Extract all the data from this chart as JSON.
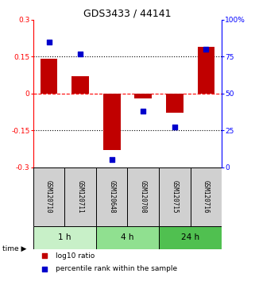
{
  "title": "GDS3433 / 44141",
  "samples": [
    "GSM120710",
    "GSM120711",
    "GSM120648",
    "GSM120708",
    "GSM120715",
    "GSM120716"
  ],
  "log10_ratio": [
    0.14,
    0.07,
    -0.23,
    -0.02,
    -0.08,
    0.19
  ],
  "percentile_rank": [
    85,
    77,
    5,
    38,
    27,
    80
  ],
  "ylim_left": [
    -0.3,
    0.3
  ],
  "ylim_right": [
    0,
    100
  ],
  "yticks_left": [
    -0.3,
    -0.15,
    0,
    0.15,
    0.3
  ],
  "yticks_right": [
    0,
    25,
    50,
    75,
    100
  ],
  "ytick_labels_right": [
    "0",
    "25",
    "50",
    "75",
    "100%"
  ],
  "hlines_dotted": [
    0.15,
    -0.15
  ],
  "hline_dashed": 0,
  "bar_color": "#c00000",
  "dot_color": "#0000cc",
  "time_groups": [
    {
      "label": "1 h",
      "samples": [
        0,
        1
      ],
      "color": "#c8f0c8"
    },
    {
      "label": "4 h",
      "samples": [
        2,
        3
      ],
      "color": "#90e090"
    },
    {
      "label": "24 h",
      "samples": [
        4,
        5
      ],
      "color": "#50c050"
    }
  ],
  "legend_bar_label": "log10 ratio",
  "legend_dot_label": "percentile rank within the sample",
  "time_label": "time",
  "background_color": "#ffffff",
  "sample_box_color": "#d0d0d0",
  "bar_width": 0.55
}
